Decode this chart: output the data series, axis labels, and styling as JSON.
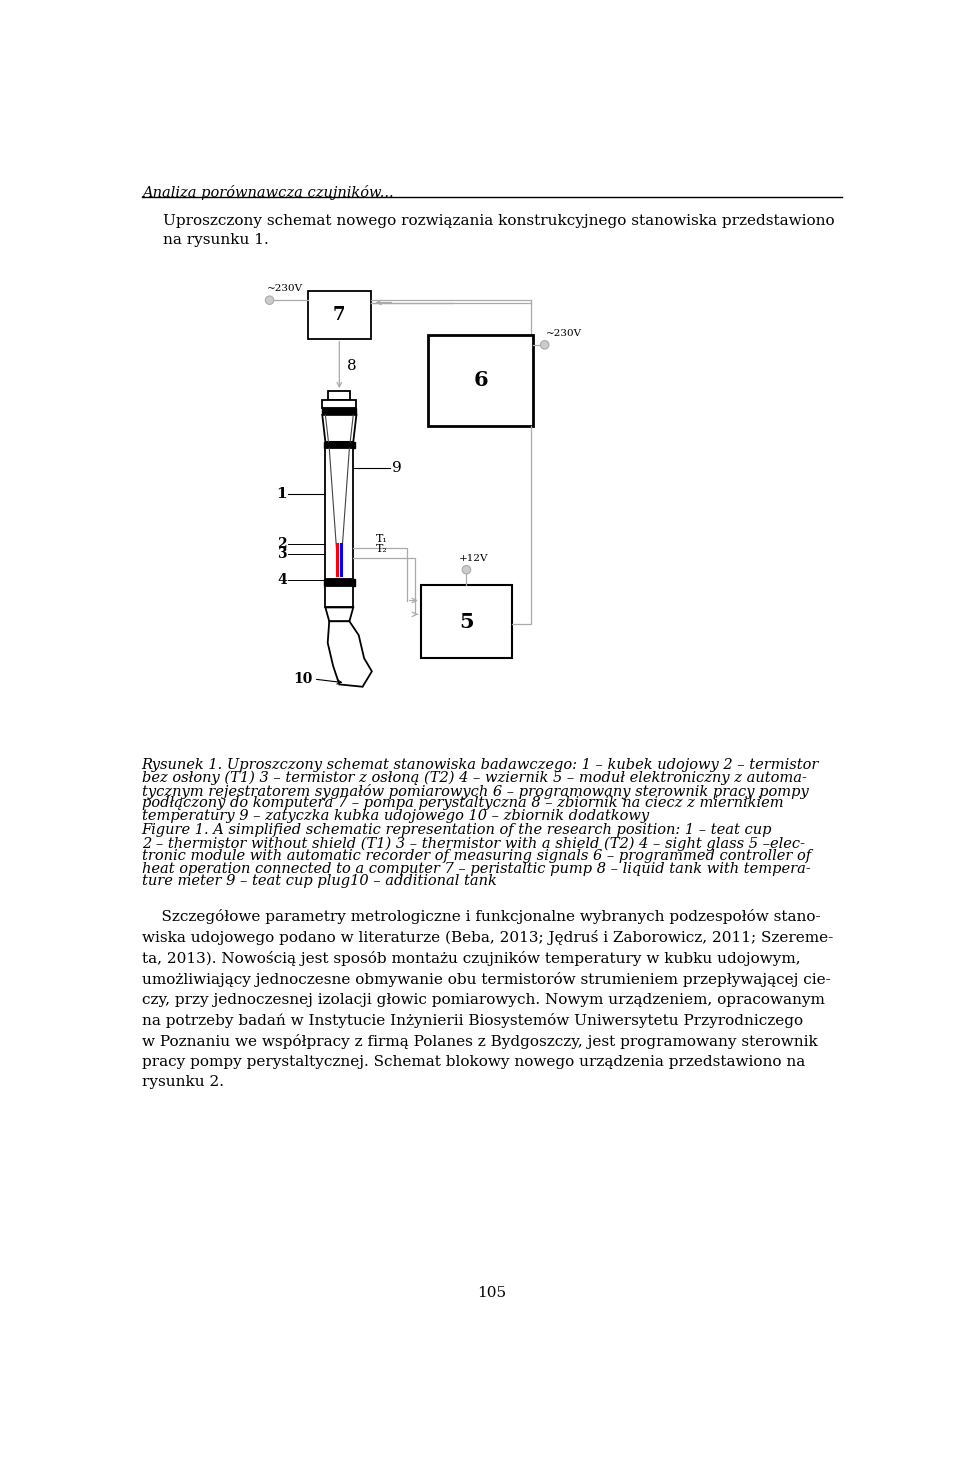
{
  "page_title": "Analiza porównawcza czujników...",
  "intro_text": "Uproszczony schemat nowego rozwiązania konstrukcyjnego stanowiska przedstawiono\nna rysunku 1.",
  "caption_polish_line1": "Rysunek 1. Uproszczony schemat stanowiska badawczego: 1 – kubek udojowy 2 – termistor",
  "caption_polish_line2": "bez osłony (T",
  "caption_polish_line2b": "1",
  "caption_polish_line2c": ") 3 – termistor z osłoną (T",
  "caption_polish_line2d": "2",
  "caption_polish_line2e": ") 4 – wziernik 5 – moduł elektroniczny z automa-",
  "caption_polish_line3": "tycznym rejestratorem sygnałów pomiarowych 6 – programowany sterownik pracy pompy",
  "caption_polish_line4": "podłączony do komputera 7 – pompa perystaltyczna 8 – zbiornik na ciecz z miernikiem",
  "caption_polish_line5": "temperatury 9 – zatyczka kubka udojowego 10 – zbiornik dodatkowy",
  "caption_english_line1": "Figure 1. A simplified schematic representation of the research position: 1 – teat cup",
  "caption_english_line2": "2 – thermistor without shield (T",
  "caption_english_line2b": "1",
  "caption_english_line2c": ") 3 – thermistor with a shield (T",
  "caption_english_line2d": "2",
  "caption_english_line2e": ") 4 – sight glass 5 –elec-",
  "caption_english_line3": "tronic module with automatic recorder of measuring signals 6 – programmed controller of",
  "caption_english_line4": "heat operation connected to a computer 7 – peristaltic pump 8 – liquid tank with tempera-",
  "caption_english_line5": "ture meter 9 – teat cup plug10 – additional tank",
  "bottom_text": "    Szczegółowe parametry metrologiczne i funkcjonalne wybranych podzespołów stano-\nwiska udojowego podano w literaturze (Beba, 2013; Jędruś i Zaborowicz, 2011; Szereme-\nta, 2013). Nowością jest sposób montażu czujników temperatury w kubku udojowym,\numożliwiający jednoczesne obmywanie obu termistorów strumieniem przepływającej cie-\nczy, przy jednoczesnej izolacji głowic pomiarowych. Nowym urządzeniem, opracowanym\nna potrzeby badań w Instytucie Inżynierii Biosystemów Uniwersytetu Przyrodniczego\nw Poznaniu we współpracy z firmą Polanes z Bydgoszczy, jest programowany sterownik\npracy pompy perystaltycznej. Schemat blokowy nowego urządzenia przedstawiono na\nrysunku 2.",
  "page_number": "105",
  "bg_color": "#ffffff",
  "text_color": "#000000",
  "gray": "#aaaaaa",
  "lgray": "#cccccc",
  "dgray": "#444444",
  "black": "#000000",
  "white": "#ffffff"
}
